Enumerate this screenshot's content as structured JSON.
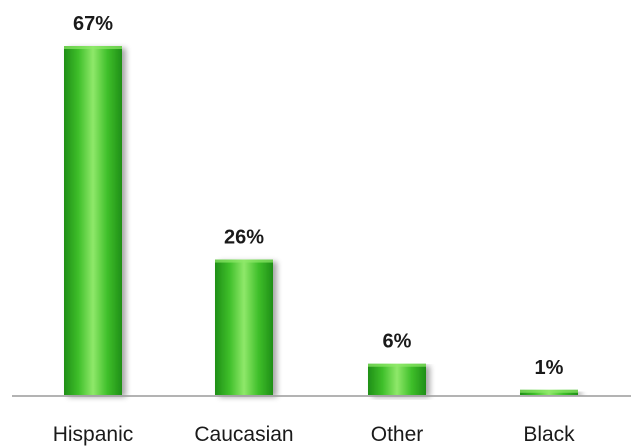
{
  "chart_data": {
    "type": "bar",
    "categories": [
      "Hispanic",
      "Caucasian",
      "Other",
      "Black"
    ],
    "values": [
      67,
      26,
      6,
      1
    ],
    "value_labels": [
      "67%",
      "26%",
      "6%",
      "1%"
    ],
    "unit": "%",
    "ylim": [
      0,
      67
    ],
    "grid": false,
    "legend": "none",
    "colors": {
      "bar_light": "#8fe86a",
      "bar_mid": "#3fbf2a",
      "bar_dark": "#1f8f17",
      "axis": "#9a9a9a",
      "text": "#1a1a1a"
    }
  }
}
